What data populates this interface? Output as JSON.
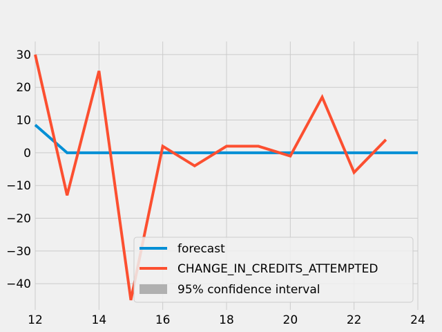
{
  "chart_data": {
    "type": "line",
    "title": "",
    "xlabel": "",
    "ylabel": "",
    "xlim": [
      12,
      24
    ],
    "ylim": [
      -48,
      34
    ],
    "xticks": [
      12,
      14,
      16,
      18,
      20,
      22,
      24
    ],
    "yticks": [
      -40,
      -30,
      -20,
      -10,
      0,
      10,
      20,
      30
    ],
    "ytick_labels": [
      "−40",
      "−30",
      "−20",
      "−10",
      "0",
      "10",
      "20",
      "30"
    ],
    "grid": true,
    "legend_position": "lower-right",
    "series": [
      {
        "name": "forecast",
        "color": "#008fd5",
        "x": [
          12,
          13,
          14,
          15,
          16,
          17,
          18,
          19,
          20,
          21,
          22,
          23,
          24
        ],
        "y": [
          8.5,
          0,
          0,
          0,
          0,
          0,
          0,
          0,
          0,
          0,
          0,
          0,
          0
        ]
      },
      {
        "name": "CHANGE_IN_CREDITS_ATTEMPTED",
        "color": "#fc4f30",
        "x": [
          12,
          13,
          14,
          15,
          16,
          17,
          18,
          19,
          20,
          21,
          22,
          23
        ],
        "y": [
          30,
          -13,
          25,
          -45,
          2,
          -4,
          2,
          2,
          -1,
          17,
          -6,
          4
        ]
      }
    ],
    "legend": [
      {
        "label": "forecast",
        "color": "#008fd5",
        "kind": "line"
      },
      {
        "label": "CHANGE_IN_CREDITS_ATTEMPTED",
        "color": "#fc4f30",
        "kind": "line"
      },
      {
        "label": "95% confidence interval",
        "color": "#b0b0b0",
        "kind": "patch"
      }
    ]
  }
}
